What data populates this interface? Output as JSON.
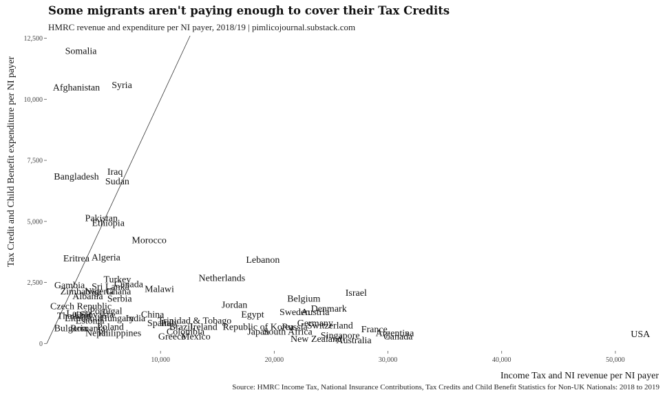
{
  "header": {
    "title": "Some migrants aren't paying enough to cover their Tax Credits",
    "subtitle": "HMRC revenue and expenditure per NI payer, 2018/19 | pimlicojournal.substack.com"
  },
  "footer": {
    "caption": "Source: HMRC Income Tax, National Insurance Contributions, Tax Credits and Child Benefit Statistics for Non-UK Nationals: 2018 to 2019"
  },
  "chart_data": {
    "type": "scatter",
    "title": "Some migrants aren't paying enough to cover their Tax Credits",
    "subtitle": "HMRC revenue and expenditure per NI payer, 2018/19 | pimlicojournal.substack.com",
    "xlabel": "Income Tax and NI revenue per NI payer",
    "ylabel": "Tax Credit and Child Benefit expenditure per NI payer",
    "xlim": [
      0,
      54000
    ],
    "ylim": [
      -300,
      12600
    ],
    "x_ticks": [
      10000,
      20000,
      30000,
      40000,
      50000
    ],
    "x_tick_labels": [
      "10,000",
      "20,000",
      "30,000",
      "40,000",
      "50,000"
    ],
    "y_ticks": [
      0,
      2500,
      5000,
      7500,
      10000,
      12500
    ],
    "y_tick_labels": [
      "0",
      "2,500",
      "5,000",
      "7,500",
      "10,000",
      "12,500"
    ],
    "grid": false,
    "reference_line": {
      "slope": 1,
      "intercept": 0
    },
    "points": [
      {
        "label": "Somalia",
        "x": 3000,
        "y": 12000
      },
      {
        "label": "Afghanistan",
        "x": 2600,
        "y": 10500
      },
      {
        "label": "Syria",
        "x": 6600,
        "y": 10600
      },
      {
        "label": "Bangladesh",
        "x": 2600,
        "y": 6850
      },
      {
        "label": "Iraq",
        "x": 6000,
        "y": 7050
      },
      {
        "label": "Sudan",
        "x": 6200,
        "y": 6650
      },
      {
        "label": "Pakistan",
        "x": 4800,
        "y": 5150
      },
      {
        "label": "Ethiopia",
        "x": 5400,
        "y": 4950
      },
      {
        "label": "Morocco",
        "x": 9000,
        "y": 4250
      },
      {
        "label": "Eritrea",
        "x": 2600,
        "y": 3500
      },
      {
        "label": "Algeria",
        "x": 5200,
        "y": 3550
      },
      {
        "label": "Lebanon",
        "x": 19000,
        "y": 3450
      },
      {
        "label": "Netherlands",
        "x": 15400,
        "y": 2700
      },
      {
        "label": "Turkey",
        "x": 6200,
        "y": 2650
      },
      {
        "label": "Gambia",
        "x": 2000,
        "y": 2400
      },
      {
        "label": "Sri Lanka",
        "x": 5600,
        "y": 2350
      },
      {
        "label": "Canada",
        "x": 7200,
        "y": 2450
      },
      {
        "label": "Malawi",
        "x": 9900,
        "y": 2250
      },
      {
        "label": "Israel",
        "x": 27200,
        "y": 2100
      },
      {
        "label": "Belgium",
        "x": 22600,
        "y": 1850
      },
      {
        "label": "Jordan",
        "x": 16500,
        "y": 1600
      },
      {
        "label": "Denmark",
        "x": 24800,
        "y": 1450
      },
      {
        "label": "Sweden",
        "x": 21800,
        "y": 1300
      },
      {
        "label": "Austria",
        "x": 23600,
        "y": 1300
      },
      {
        "label": "Egypt",
        "x": 18100,
        "y": 1200
      },
      {
        "label": "Germany",
        "x": 23600,
        "y": 850
      },
      {
        "label": "Trinidad & Tobago",
        "x": 13000,
        "y": 950
      },
      {
        "label": "Ireland",
        "x": 13800,
        "y": 700
      },
      {
        "label": "Republic of Korea",
        "x": 18600,
        "y": 700
      },
      {
        "label": "Russia",
        "x": 21800,
        "y": 700
      },
      {
        "label": "Switzerland",
        "x": 24900,
        "y": 750
      },
      {
        "label": "France",
        "x": 28800,
        "y": 600
      },
      {
        "label": "Japan",
        "x": 18600,
        "y": 500
      },
      {
        "label": "South Africa",
        "x": 21200,
        "y": 500
      },
      {
        "label": "Argentina",
        "x": 30600,
        "y": 450
      },
      {
        "label": "Singapore",
        "x": 25800,
        "y": 350
      },
      {
        "label": "Canada",
        "x": 30900,
        "y": 300
      },
      {
        "label": "New Zealand",
        "x": 23700,
        "y": 200
      },
      {
        "label": "Australia",
        "x": 27000,
        "y": 150
      },
      {
        "label": "Mexico",
        "x": 13100,
        "y": 300
      },
      {
        "label": "Greece",
        "x": 11000,
        "y": 300
      },
      {
        "label": "USA",
        "x": 52200,
        "y": 400
      },
      {
        "label": "Nepal",
        "x": 4400,
        "y": 450
      },
      {
        "label": "Philippines",
        "x": 6400,
        "y": 450
      },
      {
        "label": "Bulgaria",
        "x": 2100,
        "y": 650
      },
      {
        "label": "Romania",
        "x": 3600,
        "y": 650
      },
      {
        "label": "Poland",
        "x": 5600,
        "y": 700
      },
      {
        "label": "Lithuania",
        "x": 3200,
        "y": 1050
      },
      {
        "label": "Latvia",
        "x": 2800,
        "y": 1250
      },
      {
        "label": "Hungary",
        "x": 6200,
        "y": 1050
      },
      {
        "label": "Slovakia",
        "x": 4400,
        "y": 1200
      },
      {
        "label": "Czech Republic",
        "x": 3000,
        "y": 1550
      },
      {
        "label": "Portugal",
        "x": 5200,
        "y": 1350
      },
      {
        "label": "China",
        "x": 9300,
        "y": 1200
      },
      {
        "label": "Albania",
        "x": 3600,
        "y": 1950
      },
      {
        "label": "Serbia",
        "x": 6400,
        "y": 1850
      },
      {
        "label": "Zimbabwe",
        "x": 3000,
        "y": 2150
      },
      {
        "label": "Nigeria",
        "x": 4600,
        "y": 2150
      },
      {
        "label": "Ghana",
        "x": 6300,
        "y": 2150
      },
      {
        "label": "India",
        "x": 7800,
        "y": 1050
      },
      {
        "label": "Italy",
        "x": 10800,
        "y": 850
      },
      {
        "label": "Spain",
        "x": 9800,
        "y": 850
      },
      {
        "label": "Thailand",
        "x": 2400,
        "y": 1150
      },
      {
        "label": "Estonia",
        "x": 3800,
        "y": 950
      },
      {
        "label": "Brazil",
        "x": 11800,
        "y": 700
      },
      {
        "label": "Colombia",
        "x": 12200,
        "y": 500
      }
    ]
  }
}
